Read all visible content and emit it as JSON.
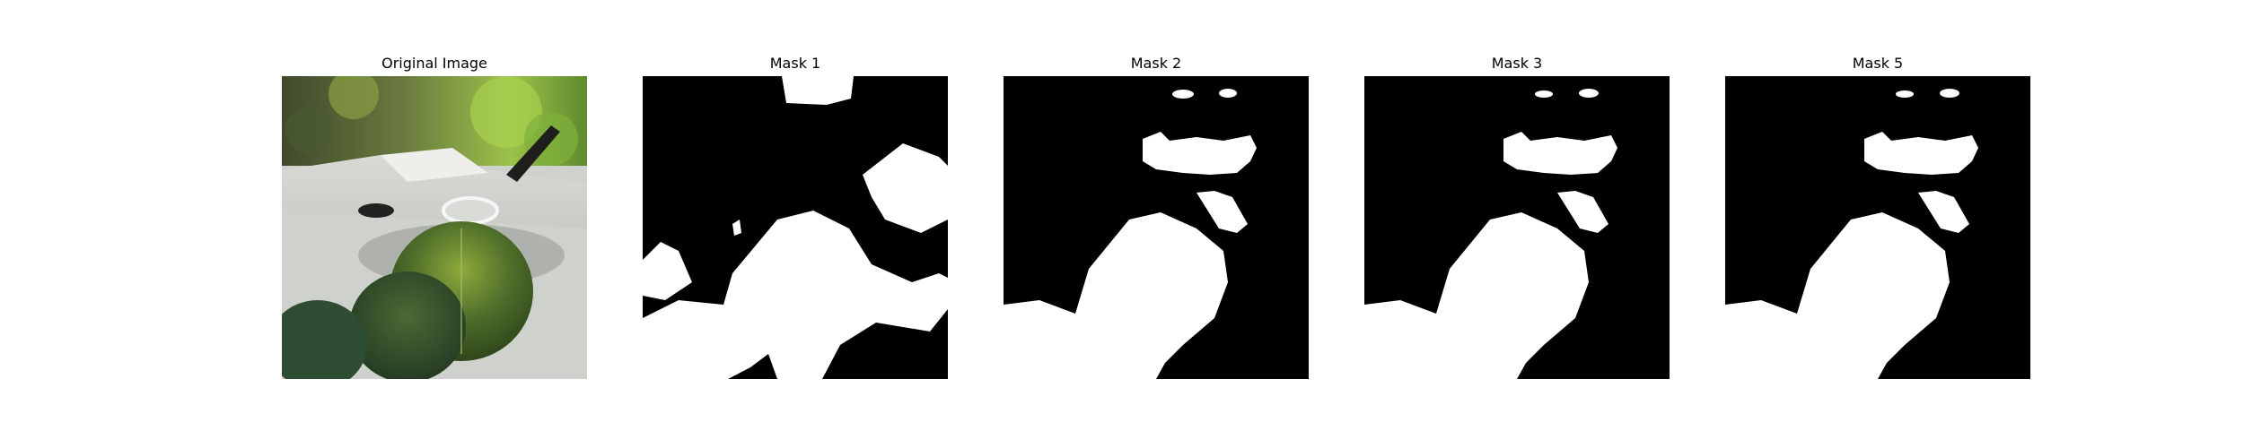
{
  "figure": {
    "panels": [
      {
        "title": "Original Image",
        "kind": "photo",
        "subject": "leaves-on-white-planter-photo"
      },
      {
        "title": "Mask 1",
        "kind": "mask"
      },
      {
        "title": "Mask 2",
        "kind": "mask"
      },
      {
        "title": "Mask 3",
        "kind": "mask"
      },
      {
        "title": "Mask 5",
        "kind": "mask"
      }
    ],
    "colors": {
      "mask_background": "#000000",
      "mask_foreground": "#ffffff",
      "title_text": "#000000",
      "page_background": "#ffffff"
    }
  }
}
